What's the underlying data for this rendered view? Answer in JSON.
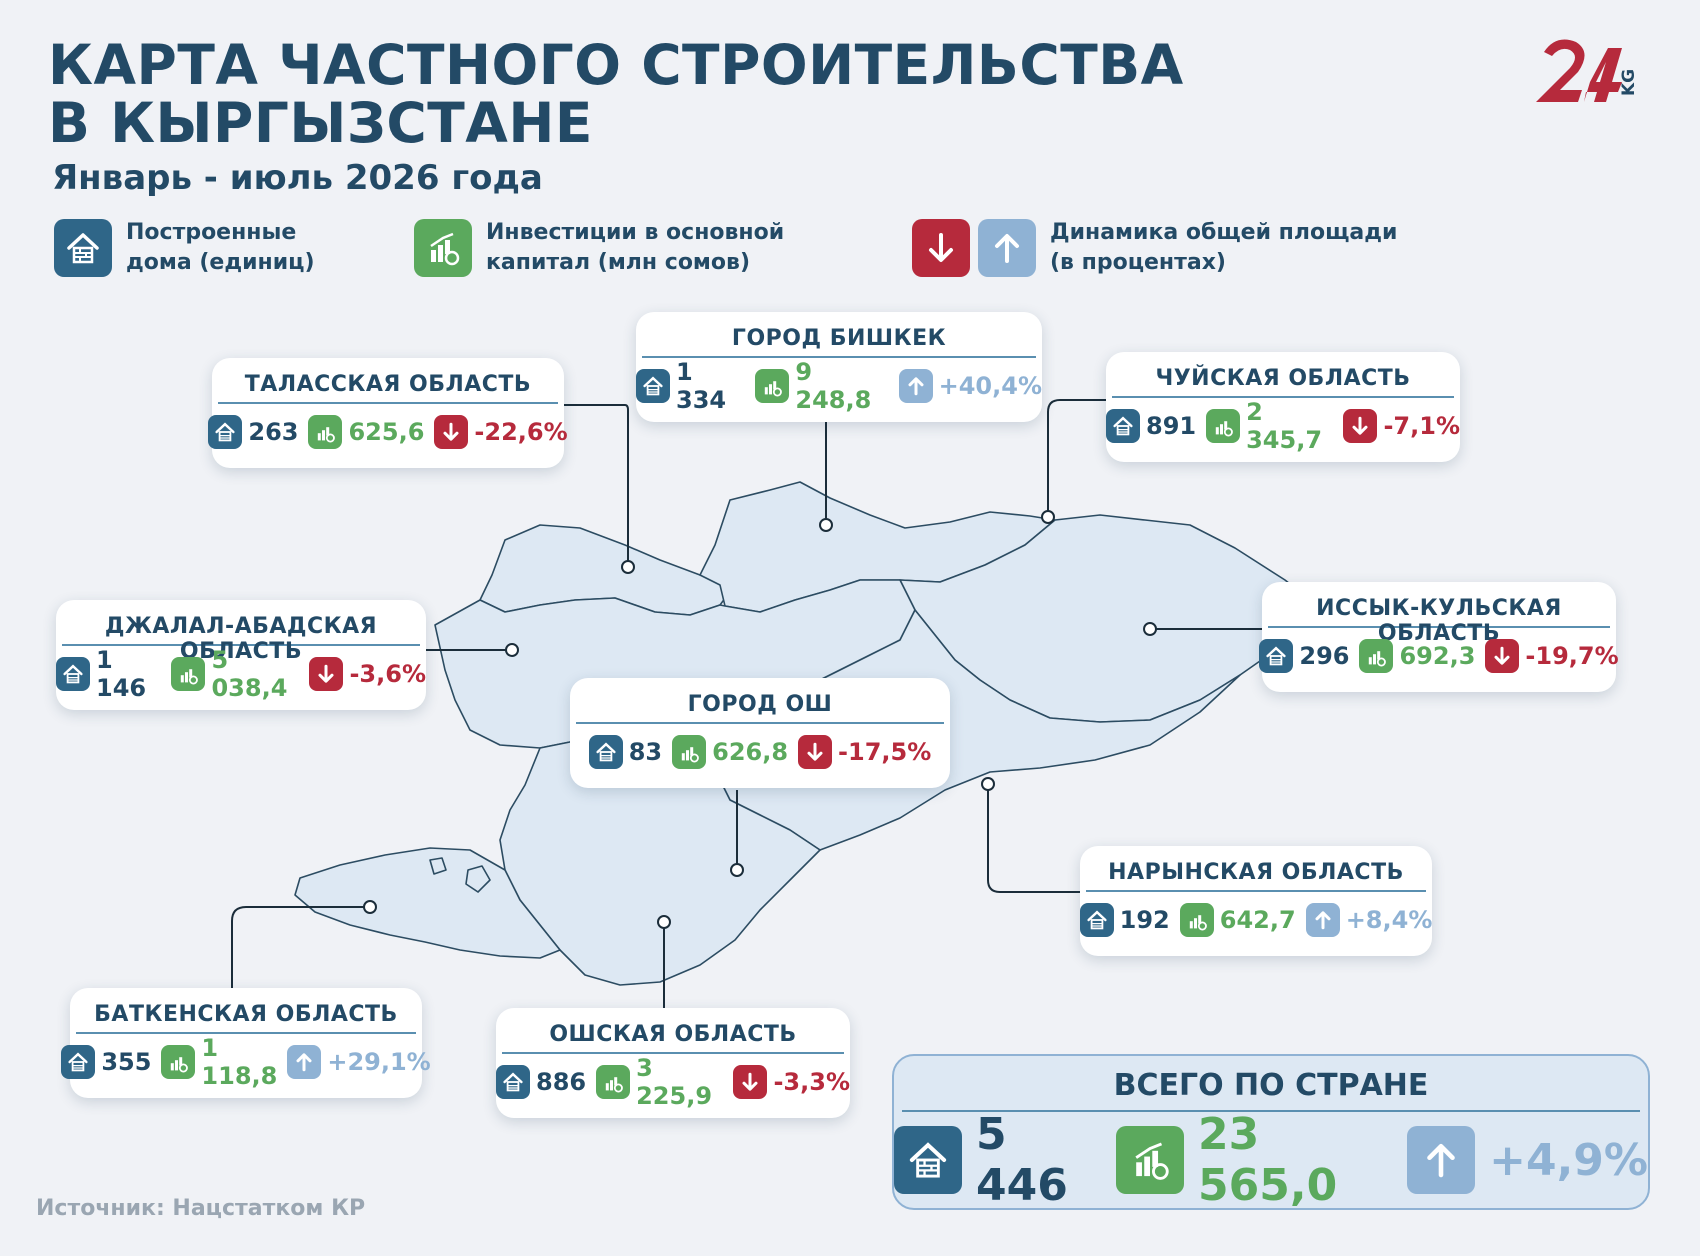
{
  "header": {
    "title_line1": "КАРТА ЧАСТНОГО СТРОИТЕЛЬСТВА",
    "title_line2": "В КЫРГЫЗСТАНЕ",
    "subtitle": "Январь - июль 2026 года",
    "logo_text": "KG"
  },
  "legend": {
    "houses": "Построенные дома (единиц)",
    "houses_l1": "Построенные",
    "houses_l2": "дома (единиц)",
    "invest_l1": "Инвестиции в основной",
    "invest_l2": "капитал (млн сомов)",
    "dynamics_l1": "Динамика общей площади",
    "dynamics_l2": "(в процентах)"
  },
  "colors": {
    "primary": "#234a66",
    "house_icon": "#2f6688",
    "invest_icon": "#5ba95d",
    "down": "#b62a3c",
    "up": "#8fb2d4",
    "map_fill": "#dde8f3",
    "map_stroke": "#2c4c62"
  },
  "regions": {
    "talas": {
      "name": "ТАЛАССКАЯ ОБЛАСТЬ",
      "houses": "263",
      "invest": "625,6",
      "change": "-22,6%",
      "trend": "down"
    },
    "bishkek": {
      "name": "ГОРОД БИШКЕК",
      "houses": "1 334",
      "invest": "9 248,8",
      "change": "+40,4%",
      "trend": "up"
    },
    "chui": {
      "name": "ЧУЙСКАЯ ОБЛАСТЬ",
      "houses": "891",
      "invest": "2 345,7",
      "change": "-7,1%",
      "trend": "down"
    },
    "jalalabad": {
      "name": "ДЖАЛАЛ-АБАДСКАЯ ОБЛАСТЬ",
      "houses": "1 146",
      "invest": "5 038,4",
      "change": "-3,6%",
      "trend": "down"
    },
    "issykkul": {
      "name": "ИССЫК-КУЛЬСКАЯ ОБЛАСТЬ",
      "houses": "296",
      "invest": "692,3",
      "change": "-19,7%",
      "trend": "down"
    },
    "osh_city": {
      "name": "ГОРОД ОШ",
      "houses": "83",
      "invest": "626,8",
      "change": "-17,5%",
      "trend": "down"
    },
    "naryn": {
      "name": "НАРЫНСКАЯ  ОБЛАСТЬ",
      "houses": "192",
      "invest": "642,7",
      "change": "+8,4%",
      "trend": "up"
    },
    "batken": {
      "name": "БАТКЕНСКАЯ ОБЛАСТЬ",
      "houses": "355",
      "invest": "1 118,8",
      "change": "+29,1%",
      "trend": "up"
    },
    "osh_region": {
      "name": "ОШСКАЯ  ОБЛАСТЬ",
      "houses": "886",
      "invest": "3 225,9",
      "change": "-3,3%",
      "trend": "down"
    }
  },
  "total": {
    "name": "ВСЕГО ПО СТРАНЕ",
    "houses": "5 446",
    "invest": "23 565,0",
    "change": "+4,9%",
    "trend": "up"
  },
  "source": "Источник: Нацстатком КР",
  "icons": [
    "house-icon",
    "investment-icon",
    "arrow-down-icon",
    "arrow-up-icon"
  ]
}
